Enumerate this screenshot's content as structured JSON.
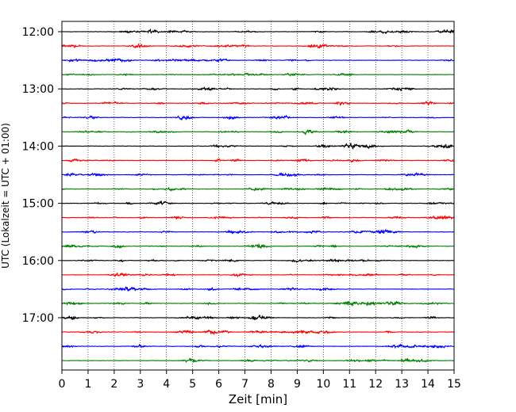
{
  "chart_data": {
    "type": "line",
    "title": "",
    "xlabel": "Zeit  [min]",
    "ylabel": "UTC (Lokalzeit = UTC + 01:00)",
    "xlim": [
      0,
      15
    ],
    "x_ticks": [
      "0",
      "1",
      "2",
      "3",
      "4",
      "5",
      "6",
      "7",
      "8",
      "9",
      "10",
      "11",
      "12",
      "13",
      "14",
      "15"
    ],
    "y_ticks": [
      {
        "label": "12:00",
        "row": 0
      },
      {
        "label": "13:00",
        "row": 4
      },
      {
        "label": "14:00",
        "row": 8
      },
      {
        "label": "15:00",
        "row": 12
      },
      {
        "label": "16:00",
        "row": 16
      },
      {
        "label": "17:00",
        "row": 20
      }
    ],
    "trace_interval_minutes": 15,
    "trace_colors": [
      "#000000",
      "#ff0000",
      "#0000ff",
      "#008000"
    ],
    "rows": [
      {
        "start": "12:00",
        "color": "#000000"
      },
      {
        "start": "12:15",
        "color": "#ff0000"
      },
      {
        "start": "12:30",
        "color": "#0000ff"
      },
      {
        "start": "12:45",
        "color": "#008000"
      },
      {
        "start": "13:00",
        "color": "#000000"
      },
      {
        "start": "13:15",
        "color": "#ff0000"
      },
      {
        "start": "13:30",
        "color": "#0000ff"
      },
      {
        "start": "13:45",
        "color": "#008000"
      },
      {
        "start": "14:00",
        "color": "#000000"
      },
      {
        "start": "14:15",
        "color": "#ff0000"
      },
      {
        "start": "14:30",
        "color": "#0000ff"
      },
      {
        "start": "14:45",
        "color": "#008000"
      },
      {
        "start": "15:00",
        "color": "#000000"
      },
      {
        "start": "15:15",
        "color": "#ff0000"
      },
      {
        "start": "15:30",
        "color": "#0000ff"
      },
      {
        "start": "15:45",
        "color": "#008000"
      },
      {
        "start": "16:00",
        "color": "#000000"
      },
      {
        "start": "16:15",
        "color": "#ff0000"
      },
      {
        "start": "16:30",
        "color": "#0000ff"
      },
      {
        "start": "16:45",
        "color": "#008000"
      },
      {
        "start": "17:00",
        "color": "#000000"
      },
      {
        "start": "17:15",
        "color": "#ff0000"
      },
      {
        "start": "17:30",
        "color": "#0000ff"
      },
      {
        "start": "17:45",
        "color": "#008000"
      }
    ],
    "vertical_grid": "dotted",
    "legend": "none"
  }
}
